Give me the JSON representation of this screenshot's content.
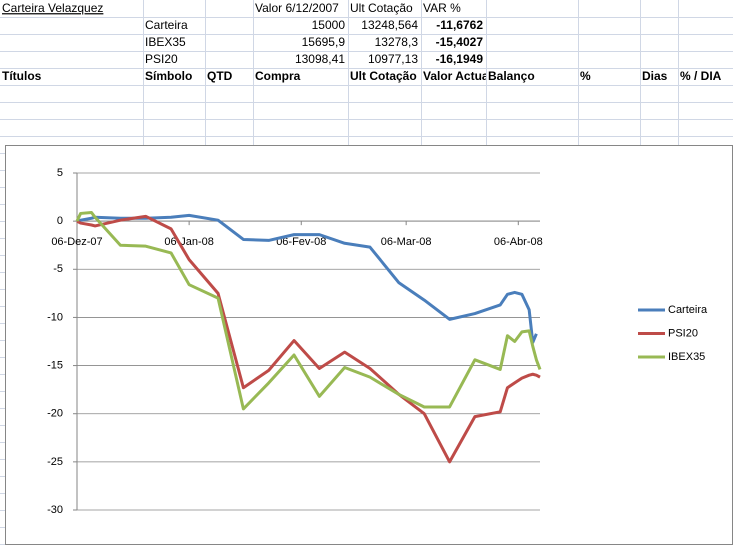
{
  "sheet": {
    "title": "Carteira Velazquez",
    "summary_header": [
      "Valor 6/12/2007",
      "Ult Cotação",
      "VAR %"
    ],
    "summary_rows": [
      [
        "Carteira",
        "15000",
        "13248,564",
        "-11,6762"
      ],
      [
        "IBEX35",
        "15695,9",
        "13278,3",
        "-15,4027"
      ],
      [
        "PSI20",
        "13098,41",
        "10977,13",
        "-16,1949"
      ]
    ],
    "columns": [
      "Títulos",
      "Símbolo",
      "QTD",
      "Compra",
      "Ult Cotação",
      "Valor Actual",
      "Balanço",
      "%",
      "Dias",
      "% / DIA"
    ]
  },
  "chart_data": {
    "type": "line",
    "x": [
      "2007-12-06",
      "2007-12-07",
      "2007-12-10",
      "2007-12-11",
      "2007-12-18",
      "2007-12-25",
      "2008-01-01",
      "2008-01-06",
      "2008-01-14",
      "2008-01-21",
      "2008-01-28",
      "2008-02-04",
      "2008-02-11",
      "2008-02-18",
      "2008-02-25",
      "2008-03-04",
      "2008-03-11",
      "2008-03-18",
      "2008-03-25",
      "2008-04-01",
      "2008-04-03",
      "2008-04-05",
      "2008-04-07",
      "2008-04-09",
      "2008-04-10",
      "2008-04-11",
      "2008-04-12"
    ],
    "series": [
      {
        "name": "Carteira",
        "color": "#4a7ebb",
        "values": [
          0,
          0.1,
          0.3,
          0.4,
          0.3,
          0.3,
          0.4,
          0.6,
          0.1,
          -1.9,
          -2.0,
          -1.4,
          -1.4,
          -2.3,
          -2.7,
          -6.4,
          -8.2,
          -10.2,
          -9.6,
          -8.7,
          -7.6,
          -7.4,
          -7.6,
          -9.2,
          -12.6,
          -11.7,
          null
        ]
      },
      {
        "name": "PSI20",
        "color": "#be4b48",
        "values": [
          0,
          -0.2,
          -0.4,
          -0.5,
          0.1,
          0.5,
          -0.8,
          -4.0,
          -7.5,
          -17.3,
          -15.5,
          -12.4,
          -15.3,
          -13.6,
          -15.3,
          -18.0,
          -20.0,
          -25.0,
          -20.3,
          -19.8,
          -17.3,
          -16.8,
          -16.3,
          -16.0,
          -15.9,
          -16.0,
          -16.2
        ]
      },
      {
        "name": "IBEX35",
        "color": "#98b954",
        "values": [
          0,
          0.8,
          0.9,
          0.4,
          -2.5,
          -2.6,
          -3.3,
          -6.6,
          -8.0,
          -19.5,
          -16.8,
          -13.9,
          -18.2,
          -15.2,
          -16.2,
          -18.0,
          -19.3,
          -19.3,
          -14.4,
          -15.4,
          -11.9,
          -12.5,
          -11.5,
          -11.4,
          -13.0,
          -14.4,
          -15.4
        ]
      }
    ],
    "xlim": [
      "2007-12-06",
      "2008-04-12"
    ],
    "xticks": [
      {
        "value": "2007-12-06",
        "label": "06-Dez-07"
      },
      {
        "value": "2008-01-06",
        "label": "06-Jan-08"
      },
      {
        "value": "2008-02-06",
        "label": "06-Fev-08"
      },
      {
        "value": "2008-03-06",
        "label": "06-Mar-08"
      },
      {
        "value": "2008-04-06",
        "label": "06-Abr-08"
      }
    ],
    "ylim": [
      -30,
      5
    ],
    "yticks": [
      5,
      0,
      -5,
      -10,
      -15,
      -20,
      -25,
      -30
    ],
    "grid": true,
    "legend": "right"
  }
}
